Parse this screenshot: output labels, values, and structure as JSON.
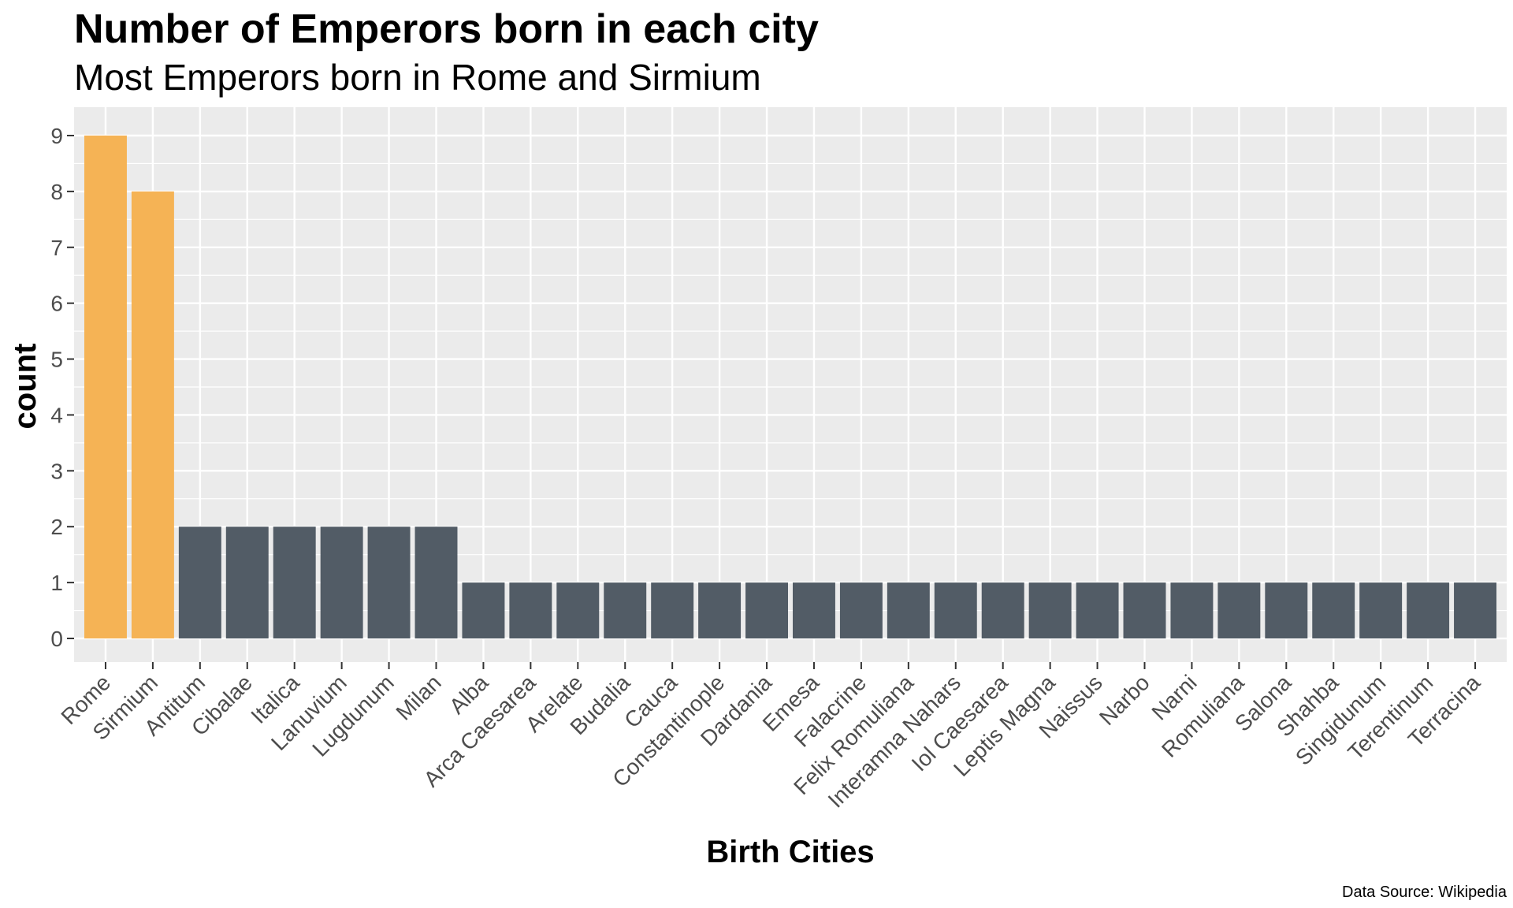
{
  "chart_data": {
    "type": "bar",
    "title": "Number of Emperors born in each city",
    "subtitle": "Most Emperors born in Rome and Sirmium",
    "xlabel": "Birth Cities",
    "ylabel": "count",
    "caption": "Data Source: Wikipedia",
    "ylim": [
      0,
      9.5
    ],
    "yticks": [
      0,
      1,
      2,
      3,
      4,
      5,
      6,
      7,
      8,
      9
    ],
    "grid": true,
    "legend": "none",
    "categories": [
      "Rome",
      "Sirmium",
      "Antitum",
      "Cibalae",
      "Italica",
      "Lanuvium",
      "Lugdunum",
      "Milan",
      "Alba",
      "Arca Caesarea",
      "Arelate",
      "Budalia",
      "Cauca",
      "Constantinople",
      "Dardania",
      "Emesa",
      "Falacrine",
      "Felix Romuliana",
      "Interamna Nahars",
      "Iol Caesarea",
      "Leptis Magna",
      "Naissus",
      "Narbo",
      "Narni",
      "Romuliana",
      "Salona",
      "Shahba",
      "Singidunum",
      "Terentinum",
      "Terracina"
    ],
    "values": [
      9,
      8,
      2,
      2,
      2,
      2,
      2,
      2,
      1,
      1,
      1,
      1,
      1,
      1,
      1,
      1,
      1,
      1,
      1,
      1,
      1,
      1,
      1,
      1,
      1,
      1,
      1,
      1,
      1,
      1
    ],
    "highlight_categories": [
      "Rome",
      "Sirmium"
    ],
    "colors": {
      "highlight": "#F5B355",
      "default": "#525C66",
      "panel": "#EBEBEB",
      "grid": "#FFFFFF",
      "tick_text": "#4D4D4D"
    }
  }
}
